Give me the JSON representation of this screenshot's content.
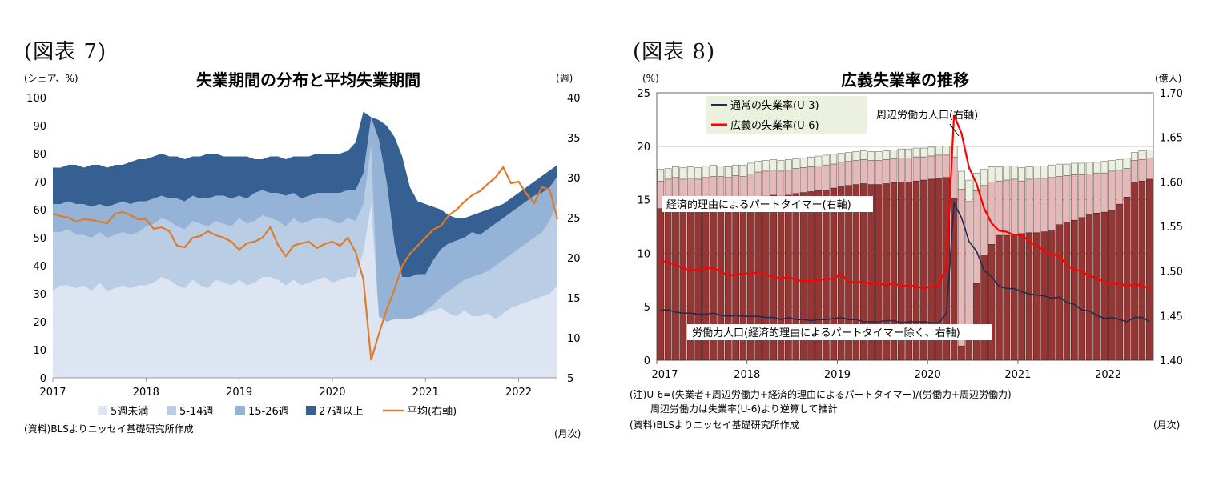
{
  "chart_data": [
    {
      "figure_label": "(図表 7)",
      "type": "area",
      "title": "失業期間の分布と平均失業期間",
      "ylabel_left": "(シェア、%)",
      "ylabel_right": "(週)",
      "xlabel": "(月次)",
      "source": "(資料)BLSよりニッセイ基礎研究所作成",
      "ylim": [
        0,
        100
      ],
      "y_ticks": [
        0,
        10,
        20,
        30,
        40,
        50,
        60,
        70,
        80,
        90,
        100
      ],
      "y2lim": [
        5,
        40
      ],
      "y2_ticks": [
        5,
        10,
        15,
        20,
        25,
        30,
        35,
        40
      ],
      "x_tick_labels": [
        "2017",
        "2018",
        "2019",
        "2020",
        "2021",
        "2022"
      ],
      "x_start": "2017-01",
      "colors": {
        "lt5": "#dce5f1",
        "w5_14": "#b9cde5",
        "w15_26": "#95b3d7",
        "w27": "#366092",
        "avg": "#e07b2a"
      },
      "legend": [
        "5週未満",
        "5-14週",
        "15-26週",
        "27週以上",
        "平均(右軸)"
      ],
      "series_cumulative": {
        "lt5": [
          31,
          33,
          33,
          32,
          33,
          31,
          34,
          31,
          32,
          33,
          32,
          33,
          33,
          34,
          36,
          35,
          33,
          32,
          35,
          33,
          32,
          35,
          34,
          33,
          35,
          33,
          34,
          36,
          36,
          35,
          33,
          35,
          33,
          34,
          35,
          36,
          34,
          35,
          36,
          36,
          45,
          62,
          22,
          20,
          21,
          21,
          21,
          22,
          23,
          24,
          25,
          23,
          22,
          24,
          22,
          22,
          23,
          21,
          23,
          25,
          26,
          27,
          28,
          29,
          30,
          33
        ],
        "w5_14": [
          52,
          52,
          53,
          51,
          51,
          50,
          52,
          50,
          51,
          52,
          51,
          52,
          54,
          55,
          57,
          56,
          54,
          53,
          56,
          55,
          54,
          56,
          55,
          54,
          57,
          55,
          56,
          58,
          57,
          56,
          54,
          57,
          55,
          56,
          57,
          57,
          56,
          55,
          57,
          56,
          62,
          83,
          16,
          17,
          18,
          19,
          20,
          21,
          24,
          26,
          29,
          31,
          33,
          35,
          36,
          37,
          38,
          40,
          42,
          44,
          46,
          48,
          50,
          52,
          56,
          63
        ],
        "w15_26": [
          62,
          62,
          63,
          62,
          62,
          61,
          62,
          61,
          62,
          63,
          62,
          63,
          63,
          64,
          65,
          64,
          64,
          63,
          65,
          64,
          64,
          65,
          65,
          64,
          65,
          64,
          66,
          67,
          66,
          66,
          65,
          66,
          64,
          65,
          66,
          66,
          66,
          66,
          67,
          67,
          73,
          93,
          85,
          70,
          48,
          36,
          36,
          37,
          37,
          42,
          46,
          48,
          49,
          50,
          52,
          51,
          53,
          55,
          57,
          59,
          61,
          63,
          65,
          66,
          68,
          72
        ],
        "w27": [
          75,
          75,
          76,
          76,
          75,
          76,
          76,
          75,
          76,
          76,
          77,
          78,
          78,
          79,
          80,
          79,
          79,
          78,
          79,
          79,
          80,
          80,
          79,
          79,
          79,
          79,
          78,
          78,
          79,
          79,
          78,
          79,
          79,
          79,
          80,
          80,
          80,
          80,
          81,
          84,
          95,
          93,
          92,
          90,
          86,
          79,
          68,
          63,
          62,
          61,
          60,
          58,
          57,
          57,
          58,
          59,
          60,
          61,
          62,
          64,
          66,
          68,
          70,
          72,
          74,
          76
        ]
      },
      "avg_weeks": [
        25.5,
        25.2,
        25.0,
        24.5,
        24.8,
        24.7,
        24.5,
        24.3,
        25.5,
        25.7,
        25.3,
        24.8,
        24.8,
        23.6,
        23.8,
        23.3,
        21.5,
        21.3,
        22.5,
        22.7,
        23.3,
        22.8,
        22.5,
        22.0,
        21.0,
        21.8,
        22.0,
        22.5,
        23.8,
        21.6,
        20.2,
        21.5,
        21.8,
        22.0,
        21.2,
        21.7,
        22.0,
        21.5,
        22.5,
        20.7,
        17.3,
        7.2,
        10.5,
        13.5,
        16.0,
        19.0,
        20.5,
        21.5,
        22.5,
        23.5,
        24.0,
        25.3,
        26.0,
        27.0,
        27.8,
        28.3,
        29.2,
        30.0,
        31.3,
        29.3,
        29.5,
        28.0,
        26.8,
        28.8,
        28.5,
        24.8
      ]
    },
    {
      "figure_label": "(図表 8)",
      "type": "bar",
      "title": "広義失業率の推移",
      "ylabel_left": "(%)",
      "ylabel_right": "(億人)",
      "xlabel": "(月次)",
      "note_1": "(注)U-6=(失業者+周辺労働力+経済的理由によるパートタイマー)/(労働力+周辺労働力)",
      "note_2": "周辺労働力は失業率(U-6)より逆算して推計",
      "source": "(資料)BLSよりニッセイ基礎研究所作成",
      "ylim": [
        0,
        25
      ],
      "y_ticks": [
        0,
        5,
        10,
        15,
        20,
        25
      ],
      "y2lim": [
        1.4,
        1.7
      ],
      "y2_ticks": [
        "1.40",
        "1.45",
        "1.50",
        "1.55",
        "1.60",
        "1.65",
        "1.70"
      ],
      "x_tick_labels": [
        "2017",
        "2018",
        "2019",
        "2020",
        "2021",
        "2022"
      ],
      "x_start": "2017-01",
      "colors": {
        "labor": "#943634",
        "parttime": "#e6b8b7",
        "marginal": "#ebf1de",
        "u3": "#1f2d4f",
        "u6": "#ff0000"
      },
      "legend": [
        "通常の失業率(U-3)",
        "広義の失業率(U-6)"
      ],
      "annotations": {
        "marginal": "周辺労働力人口(右軸)",
        "parttime": "経済的理由によるパートタイマー(右軸)",
        "labor": "労働力人口(経済的理由によるパートタイマー除く、右軸)"
      },
      "labor_force": [
        1.57,
        1.573,
        1.575,
        1.574,
        1.575,
        1.574,
        1.576,
        1.577,
        1.577,
        1.576,
        1.578,
        1.577,
        1.58,
        1.583,
        1.584,
        1.585,
        1.584,
        1.585,
        1.587,
        1.588,
        1.589,
        1.59,
        1.591,
        1.593,
        1.595,
        1.596,
        1.597,
        1.598,
        1.597,
        1.597,
        1.598,
        1.599,
        1.6,
        1.6,
        1.601,
        1.602,
        1.603,
        1.604,
        1.605,
        1.581,
        1.416,
        1.438,
        1.486,
        1.518,
        1.53,
        1.54,
        1.54,
        1.541,
        1.542,
        1.543,
        1.543,
        1.544,
        1.545,
        1.552,
        1.555,
        1.557,
        1.56,
        1.563,
        1.565,
        1.566,
        1.568,
        1.575,
        1.583,
        1.6,
        1.601,
        1.603
      ],
      "with_parttime": [
        1.601,
        1.603,
        1.605,
        1.603,
        1.604,
        1.603,
        1.605,
        1.606,
        1.606,
        1.605,
        1.607,
        1.606,
        1.609,
        1.611,
        1.612,
        1.613,
        1.612,
        1.613,
        1.615,
        1.616,
        1.617,
        1.618,
        1.619,
        1.62,
        1.622,
        1.623,
        1.624,
        1.625,
        1.624,
        1.624,
        1.625,
        1.626,
        1.627,
        1.627,
        1.628,
        1.628,
        1.629,
        1.63,
        1.63,
        1.628,
        1.592,
        1.578,
        1.59,
        1.596,
        1.6,
        1.601,
        1.602,
        1.603,
        1.601,
        1.603,
        1.604,
        1.604,
        1.605,
        1.606,
        1.607,
        1.608,
        1.608,
        1.609,
        1.61,
        1.61,
        1.612,
        1.613,
        1.615,
        1.624,
        1.625,
        1.627
      ],
      "with_marginal": [
        1.614,
        1.615,
        1.617,
        1.616,
        1.617,
        1.616,
        1.618,
        1.619,
        1.618,
        1.617,
        1.619,
        1.619,
        1.621,
        1.623,
        1.624,
        1.625,
        1.624,
        1.625,
        1.626,
        1.627,
        1.628,
        1.629,
        1.63,
        1.631,
        1.632,
        1.633,
        1.634,
        1.635,
        1.634,
        1.634,
        1.635,
        1.636,
        1.637,
        1.637,
        1.638,
        1.638,
        1.639,
        1.64,
        1.64,
        1.64,
        1.612,
        1.602,
        1.61,
        1.614,
        1.617,
        1.617,
        1.618,
        1.618,
        1.616,
        1.617,
        1.618,
        1.618,
        1.619,
        1.62,
        1.62,
        1.621,
        1.621,
        1.622,
        1.622,
        1.623,
        1.624,
        1.625,
        1.627,
        1.633,
        1.635,
        1.636
      ],
      "u3": [
        4.7,
        4.7,
        4.5,
        4.4,
        4.4,
        4.3,
        4.3,
        4.4,
        4.2,
        4.1,
        4.2,
        4.1,
        4.1,
        4.1,
        4.0,
        4.0,
        3.8,
        4.0,
        3.8,
        3.8,
        3.7,
        3.8,
        3.8,
        3.9,
        4.0,
        3.8,
        3.8,
        3.6,
        3.6,
        3.6,
        3.7,
        3.7,
        3.5,
        3.6,
        3.6,
        3.6,
        3.5,
        3.5,
        4.4,
        14.7,
        13.3,
        11.1,
        10.2,
        8.4,
        7.8,
        6.9,
        6.7,
        6.7,
        6.4,
        6.2,
        6.1,
        6.0,
        5.8,
        5.9,
        5.4,
        5.2,
        4.7,
        4.6,
        4.2,
        3.9,
        4.0,
        3.8,
        3.6,
        4.0,
        4.0,
        3.6
      ],
      "u6": [
        9.3,
        9.2,
        8.9,
        8.6,
        8.4,
        8.5,
        8.6,
        8.6,
        8.3,
        7.9,
        8.0,
        8.1,
        8.1,
        8.2,
        8.0,
        7.8,
        7.6,
        7.8,
        7.5,
        7.4,
        7.4,
        7.5,
        7.6,
        7.6,
        8.1,
        7.3,
        7.3,
        7.3,
        7.1,
        7.2,
        7.0,
        7.2,
        6.9,
        7.0,
        6.9,
        6.7,
        6.9,
        7.0,
        8.7,
        22.9,
        21.2,
        18.0,
        16.5,
        14.2,
        12.8,
        12.1,
        12.0,
        11.7,
        11.7,
        11.1,
        10.7,
        10.2,
        9.8,
        9.8,
        8.8,
        8.5,
        8.3,
        7.9,
        7.7,
        7.3,
        7.1,
        7.2,
        6.9,
        7.1,
        7.0,
        6.7
      ]
    }
  ]
}
